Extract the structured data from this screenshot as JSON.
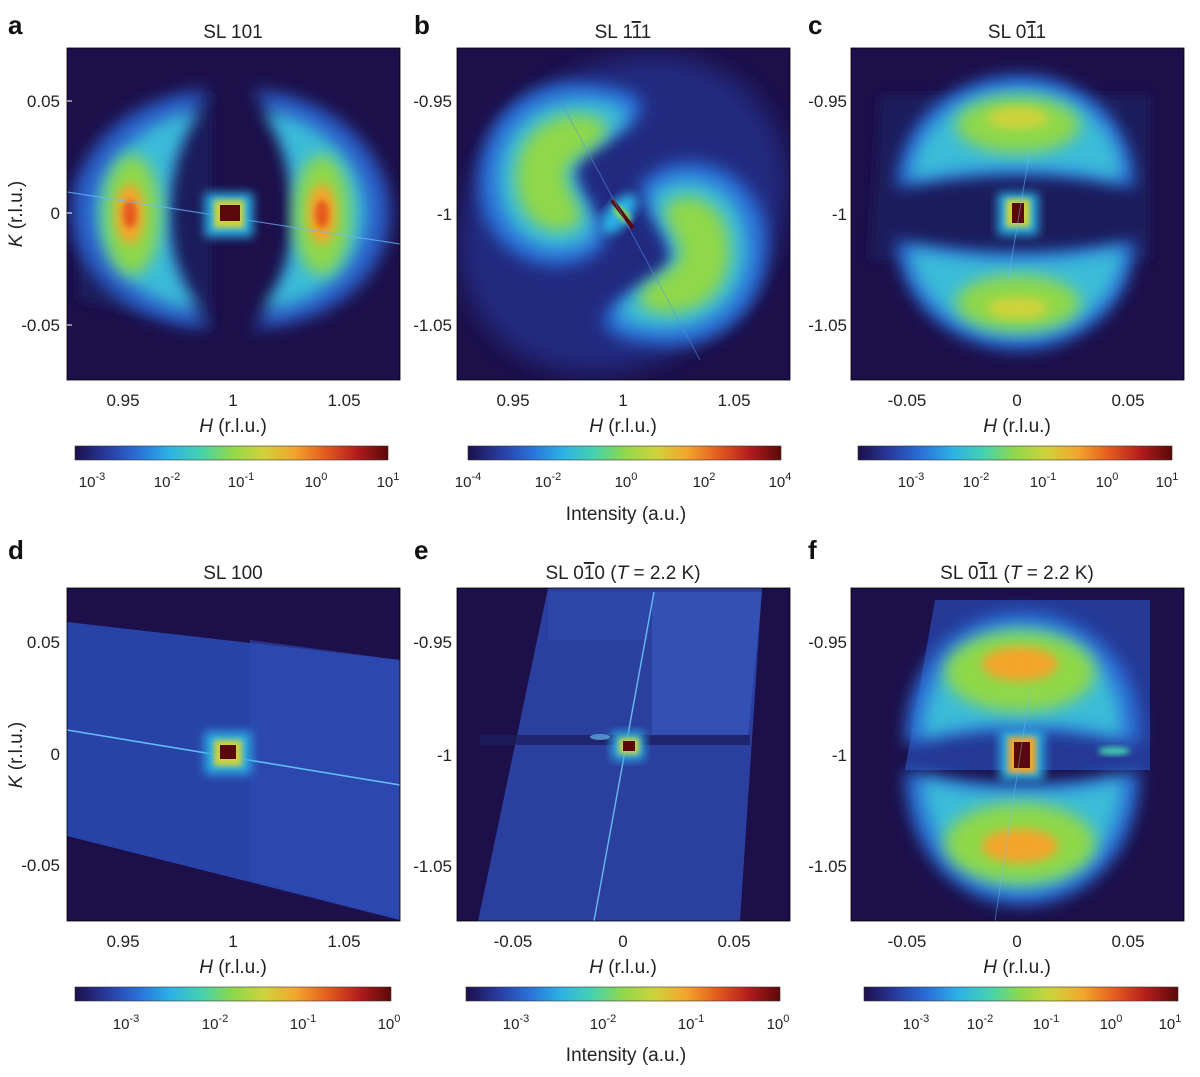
{
  "colormap": [
    "#1c0f4a",
    "#283a9e",
    "#2a6fd8",
    "#2bb1e6",
    "#44d2b0",
    "#8fd84a",
    "#cfd33a",
    "#f3a52b",
    "#e45b1f",
    "#b41c1c",
    "#5a0808"
  ],
  "panels": [
    {
      "id": "a",
      "label": "a",
      "title": "SL 101",
      "ylabel": "K (r.l.u.)",
      "xticks": [
        "0.95",
        "1",
        "1.05"
      ],
      "yticks": [
        "0.05",
        "0",
        "-0.05"
      ],
      "xlabel": "H (r.l.u.)",
      "colorbar": {
        "ticks": [
          {
            "b": "10",
            "e": "-3"
          },
          {
            "b": "10",
            "e": "-2"
          },
          {
            "b": "10",
            "e": "-1"
          },
          {
            "b": "10",
            "e": "0"
          },
          {
            "b": "10",
            "e": "1"
          }
        ]
      }
    },
    {
      "id": "b",
      "label": "b",
      "title_parts": {
        "pre": "SL 1",
        "bar": "1",
        "post": "1"
      },
      "ylabel": "",
      "xticks": [
        "0.95",
        "1",
        "1.05"
      ],
      "yticks": [
        "-0.95",
        "-1",
        "-1.05"
      ],
      "xlabel": "H (r.l.u.)",
      "colorbar": {
        "ticks": [
          {
            "b": "10",
            "e": "-4"
          },
          {
            "b": "10",
            "e": "-2"
          },
          {
            "b": "10",
            "e": "0"
          },
          {
            "b": "10",
            "e": "2"
          },
          {
            "b": "10",
            "e": "4"
          }
        ]
      },
      "cblabel": "Intensity (a.u.)"
    },
    {
      "id": "c",
      "label": "c",
      "title_parts": {
        "pre": "SL 0",
        "bar": "1",
        "post": "1"
      },
      "ylabel": "",
      "xticks": [
        "-0.05",
        "0",
        "0.05"
      ],
      "yticks": [
        "-0.95",
        "-1",
        "-1.05"
      ],
      "xlabel": "H (r.l.u.)",
      "colorbar": {
        "ticks": [
          {
            "b": "10",
            "e": "-3"
          },
          {
            "b": "10",
            "e": "-2"
          },
          {
            "b": "10",
            "e": "-1"
          },
          {
            "b": "10",
            "e": "0"
          },
          {
            "b": "10",
            "e": "1"
          }
        ]
      }
    },
    {
      "id": "d",
      "label": "d",
      "title": "SL 100",
      "ylabel": "K (r.l.u.)",
      "xticks": [
        "0.95",
        "1",
        "1.05"
      ],
      "yticks": [
        "0.05",
        "0",
        "-0.05"
      ],
      "xlabel": "H (r.l.u.)",
      "colorbar": {
        "ticks": [
          {
            "b": "10",
            "e": "-3"
          },
          {
            "b": "10",
            "e": "-2"
          },
          {
            "b": "10",
            "e": "-1"
          },
          {
            "b": "10",
            "e": "0"
          }
        ]
      }
    },
    {
      "id": "e",
      "label": "e",
      "title_parts": {
        "pre": "SL 0",
        "bar": "1",
        "post": "0 (",
        "it": "T",
        "tail": " = 2.2 K)"
      },
      "ylabel": "",
      "xticks": [
        "-0.05",
        "0",
        "0.05"
      ],
      "yticks": [
        "-0.95",
        "-1",
        "-1.05"
      ],
      "xlabel": "H (r.l.u.)",
      "colorbar": {
        "ticks": [
          {
            "b": "10",
            "e": "-3"
          },
          {
            "b": "10",
            "e": "-2"
          },
          {
            "b": "10",
            "e": "-1"
          },
          {
            "b": "10",
            "e": "0"
          }
        ]
      },
      "cblabel": "Intensity (a.u.)"
    },
    {
      "id": "f",
      "label": "f",
      "title_parts": {
        "pre": "SL 0",
        "bar": "1",
        "post": "1 (",
        "it": "T",
        "tail": " = 2.2 K)"
      },
      "ylabel": "",
      "xticks": [
        "-0.05",
        "0",
        "0.05"
      ],
      "yticks": [
        "-0.95",
        "-1",
        "-1.05"
      ],
      "xlabel": "H (r.l.u.)",
      "colorbar": {
        "ticks": [
          {
            "b": "10",
            "e": "-3"
          },
          {
            "b": "10",
            "e": "-2"
          },
          {
            "b": "10",
            "e": "-1"
          },
          {
            "b": "10",
            "e": "0"
          },
          {
            "b": "10",
            "e": "1"
          }
        ]
      }
    }
  ]
}
